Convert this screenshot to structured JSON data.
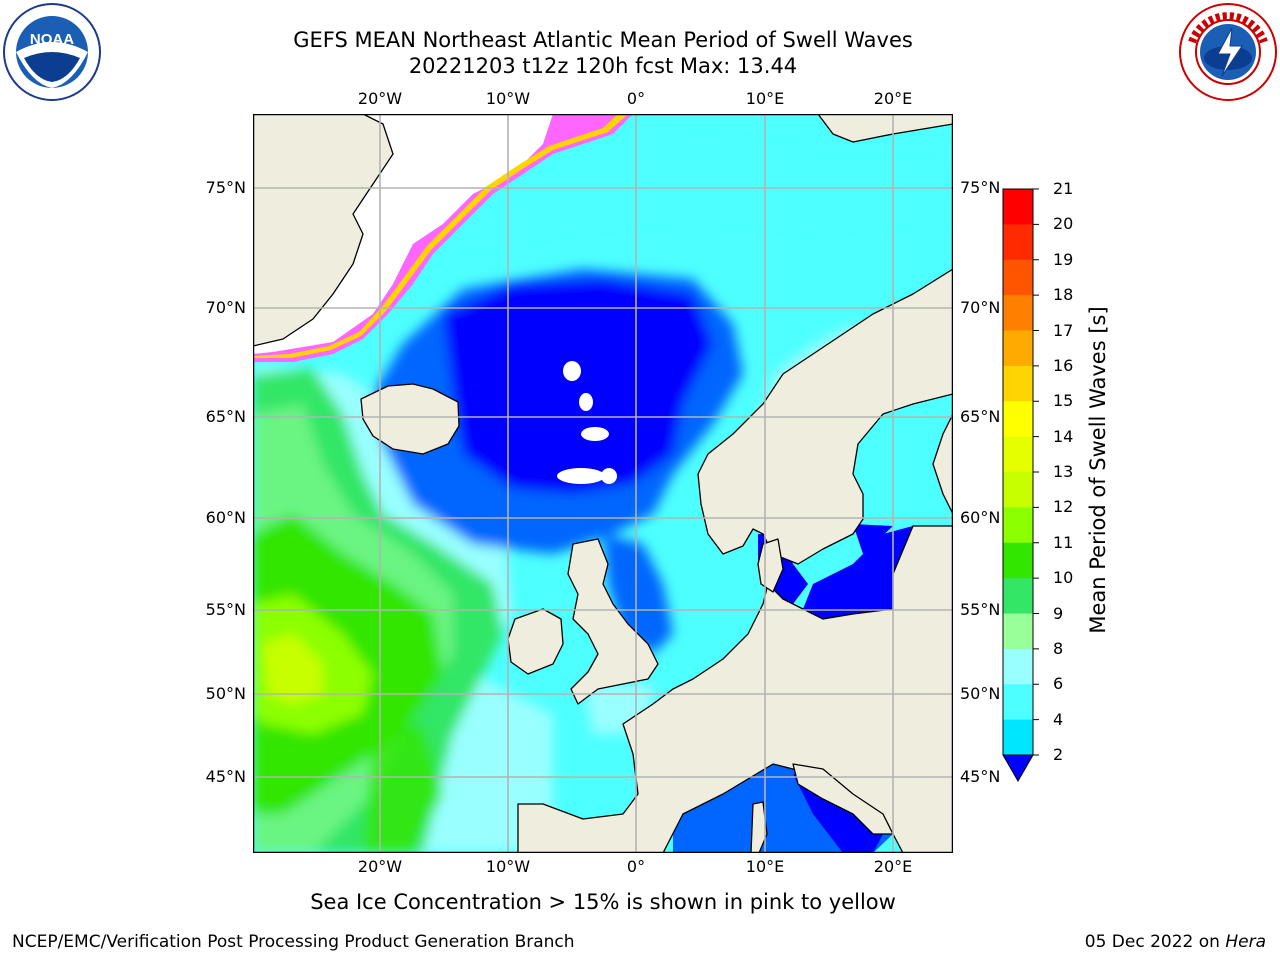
{
  "header": {
    "title_line1": "GEFS MEAN Northeast Atlantic Mean Period of Swell Waves",
    "title_line2": "20221203 t12z 120h fcst   Max: 13.44"
  },
  "map": {
    "lon_labels": [
      "20°W",
      "10°W",
      "0°",
      "10°E",
      "20°E"
    ],
    "lat_labels": [
      "75°N",
      "70°N",
      "65°N",
      "60°N",
      "55°N",
      "50°N",
      "45°N"
    ],
    "land_color": "#efeddd",
    "gridline_color": "#b3b3b3"
  },
  "colorbar": {
    "label": "Mean Period of Swell Waves [s]",
    "ticks": [
      "21",
      "20",
      "19",
      "18",
      "17",
      "16",
      "15",
      "14",
      "13",
      "12",
      "11",
      "10",
      "9",
      "8",
      "6",
      "4",
      "2"
    ],
    "colors_top_to_bottom": [
      "#ff0000",
      "#ff2a00",
      "#ff5500",
      "#ff8000",
      "#ffaa00",
      "#ffd400",
      "#ffff00",
      "#e6ff00",
      "#c8ff00",
      "#8cff00",
      "#33e600",
      "#33e666",
      "#99ff99",
      "#99ffff",
      "#4dffff",
      "#00e6ff",
      "#0066ff"
    ],
    "extend_color": "#0000ff"
  },
  "note": "Sea Ice Concentration > 15% is shown in pink to yellow",
  "footer": {
    "left": "NCEP/EMC/Verification Post Processing Product Generation Branch",
    "date": "05 Dec 2022 on ",
    "host": "Hera"
  }
}
